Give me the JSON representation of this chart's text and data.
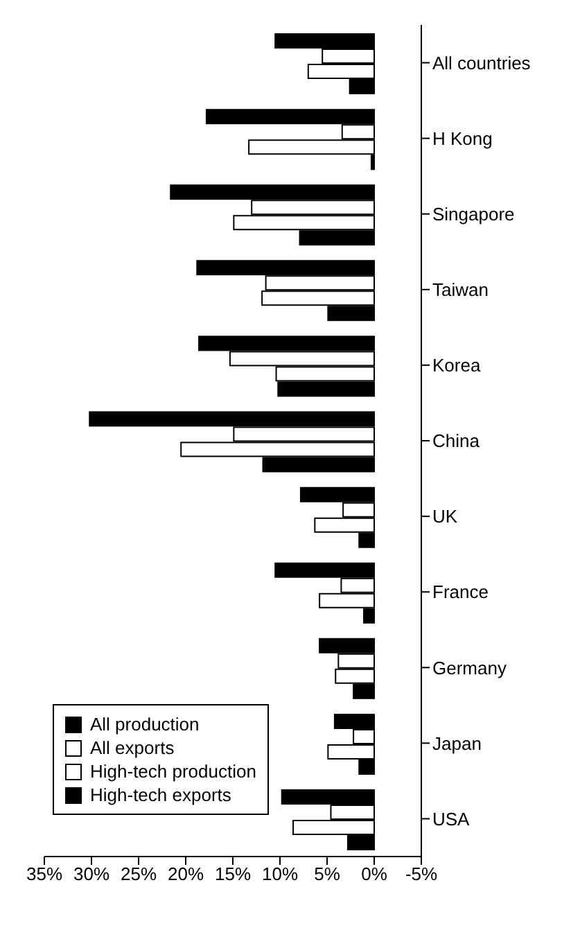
{
  "chart_data": {
    "type": "bar",
    "orientation": "horizontal",
    "categories": [
      "All countries",
      "H Kong",
      "Singapore",
      "Taiwan",
      "Korea",
      "China",
      "UK",
      "France",
      "Germany",
      "Japan",
      "USA"
    ],
    "series": [
      {
        "name": "High-tech exports",
        "color": "#000000",
        "values": [
          10.5,
          17.8,
          21.6,
          18.8,
          18.6,
          30.2,
          7.8,
          10.5,
          5.8,
          4.2,
          9.8
        ]
      },
      {
        "name": "High-tech production",
        "color": "#ffffff",
        "values": [
          5.5,
          3.4,
          13.0,
          11.5,
          15.3,
          14.9,
          3.3,
          3.5,
          3.8,
          2.2,
          4.6
        ]
      },
      {
        "name": "All exports",
        "color": "#ffffff",
        "values": [
          7.0,
          13.3,
          14.9,
          11.9,
          10.4,
          20.5,
          6.3,
          5.8,
          4.1,
          4.9,
          8.6
        ]
      },
      {
        "name": "All production",
        "color": "#000000",
        "values": [
          2.6,
          0.3,
          7.9,
          4.9,
          10.2,
          11.8,
          1.6,
          1.1,
          2.2,
          1.6,
          2.8
        ]
      }
    ],
    "xlim": [
      35,
      -5
    ],
    "xticks": [
      {
        "value": 35,
        "label": "35%"
      },
      {
        "value": 30,
        "label": "30%"
      },
      {
        "value": 25,
        "label": "25%"
      },
      {
        "value": 20,
        "label": "20%"
      },
      {
        "value": 15,
        "label": "15%"
      },
      {
        "value": 10,
        "label": "10%"
      },
      {
        "value": 5,
        "label": "5%"
      },
      {
        "value": 0,
        "label": "0%"
      },
      {
        "value": -5,
        "label": "-5%"
      }
    ],
    "grid": false,
    "legend": "bottom left"
  }
}
